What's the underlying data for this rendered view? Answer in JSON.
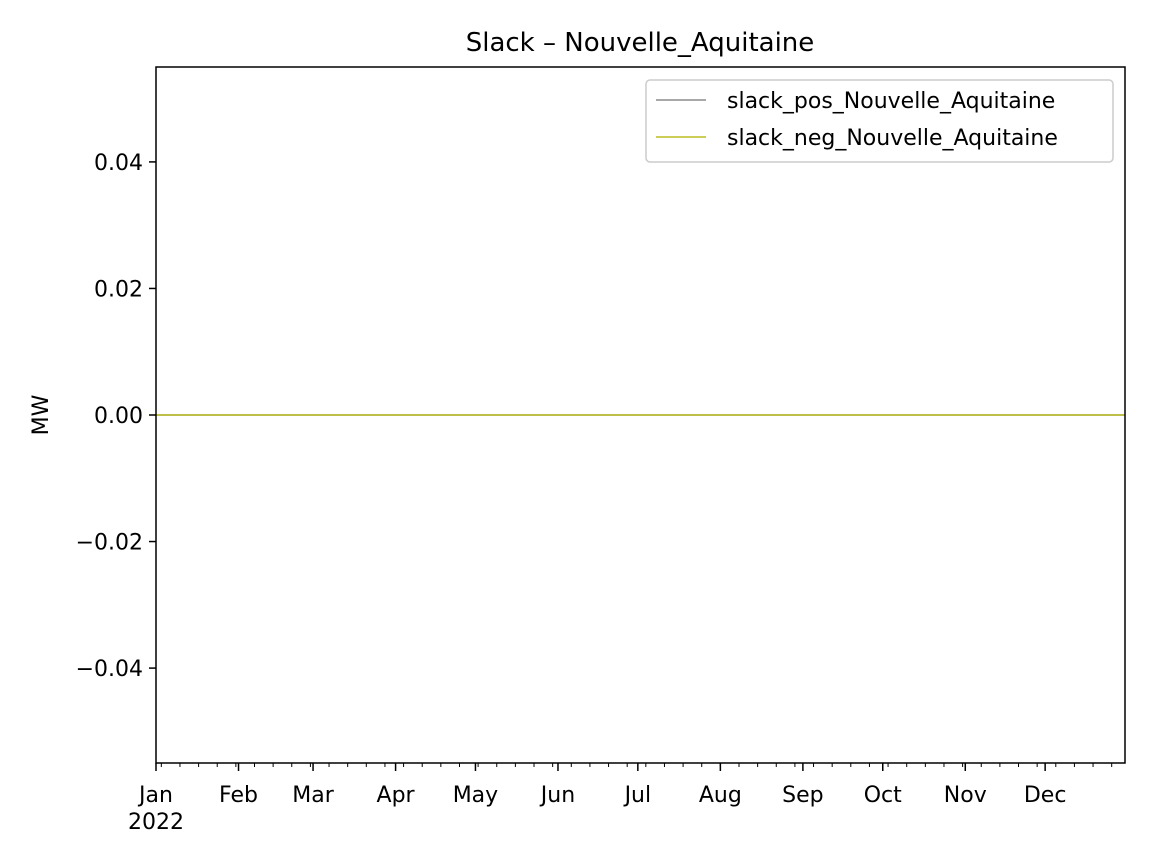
{
  "chart_data": {
    "type": "line",
    "title": "Slack – Nouvelle_Aquitaine",
    "xlabel": "",
    "ylabel": "MW",
    "x_range": [
      "2022-01-01",
      "2022-12-31"
    ],
    "ylim": [
      -0.055,
      0.055
    ],
    "y_ticks": [
      0.04,
      0.02,
      0.0,
      -0.02,
      -0.04
    ],
    "y_tick_labels": [
      "0.04",
      "0.02",
      "0.00",
      "−0.02",
      "−0.04"
    ],
    "x_tick_dates": [
      "2022-01-01",
      "2022-02-01",
      "2022-03-01",
      "2022-04-01",
      "2022-05-01",
      "2022-06-01",
      "2022-07-01",
      "2022-08-01",
      "2022-09-01",
      "2022-10-01",
      "2022-11-01",
      "2022-12-01"
    ],
    "x_tick_labels": [
      "Jan",
      "Feb",
      "Mar",
      "Apr",
      "May",
      "Jun",
      "Jul",
      "Aug",
      "Sep",
      "Oct",
      "Nov",
      "Dec"
    ],
    "x_year_label": "2022",
    "grid": false,
    "legend_position": "top-right",
    "series": [
      {
        "name": "slack_pos_Nouvelle_Aquitaine",
        "color": "#8c8c8c",
        "x": [
          "2022-01-01",
          "2022-12-31"
        ],
        "values": [
          0,
          0
        ]
      },
      {
        "name": "slack_neg_Nouvelle_Aquitaine",
        "color": "#bcbd22",
        "x": [
          "2022-01-01",
          "2022-12-31"
        ],
        "values": [
          0,
          0
        ]
      }
    ]
  }
}
